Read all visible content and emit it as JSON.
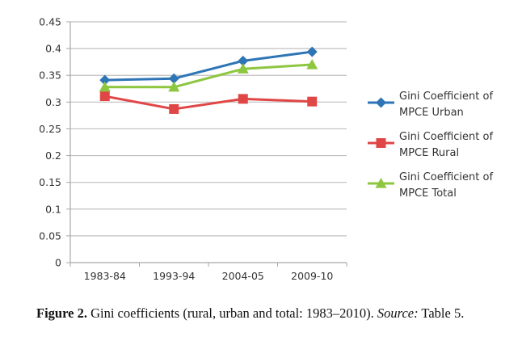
{
  "chart_data": {
    "type": "line",
    "title": "",
    "xlabel": "",
    "ylabel": "",
    "categories": [
      "1983-84",
      "1993-94",
      "2004-05",
      "2009-10"
    ],
    "ylim": [
      0,
      0.45
    ],
    "yticks": [
      0,
      0.05,
      0.1,
      0.15,
      0.2,
      0.25,
      0.3,
      0.35,
      0.4,
      0.45
    ],
    "ytick_labels": [
      "0",
      "0.05",
      "0.1",
      "0.15",
      "0.2",
      "0.25",
      "0.3",
      "0.35",
      "0.4",
      "0.45"
    ],
    "grid": true,
    "legend_position": "right",
    "series": [
      {
        "name_line1": "Gini Coefficient of",
        "name_line2": "MPCE  Urban",
        "name": "Gini Coefficient of MPCE Urban",
        "color": "#2E75B6",
        "marker": "diamond",
        "values": [
          0.341,
          0.344,
          0.377,
          0.394
        ]
      },
      {
        "name_line1": "Gini Coefficient of",
        "name_line2": "MPCE  Rural",
        "name": "Gini Coefficient of MPCE Rural",
        "color": "#E04646",
        "marker": "square",
        "values": [
          0.311,
          0.287,
          0.306,
          0.301
        ]
      },
      {
        "name_line1": "Gini Coefficient of",
        "name_line2": "MPCE  Total",
        "name": "Gini Coefficient of MPCE Total",
        "color": "#8DC63F",
        "marker": "triangle",
        "values": [
          0.328,
          0.328,
          0.362,
          0.37
        ]
      }
    ]
  },
  "caption": {
    "figure_label": "Figure 2.",
    "text": " Gini coefficients (rural, urban and total: 1983–2010). ",
    "source_label": "Source:",
    "source_text": " Table 5."
  },
  "colors": {
    "grid": "#BFBFBF",
    "axis": "#A6A6A6"
  }
}
